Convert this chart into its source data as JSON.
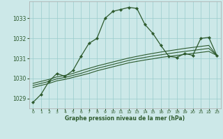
{
  "background_color": "#cce8e8",
  "grid_color": "#99cccc",
  "line_color": "#2d5a2d",
  "title": "Graphe pression niveau de la mer (hPa)",
  "xlim": [
    -0.5,
    23.5
  ],
  "ylim": [
    1028.5,
    1033.85
  ],
  "yticks": [
    1029,
    1030,
    1031,
    1032,
    1033
  ],
  "xticks": [
    0,
    1,
    2,
    3,
    4,
    5,
    6,
    7,
    8,
    9,
    10,
    11,
    12,
    13,
    14,
    15,
    16,
    17,
    18,
    19,
    20,
    21,
    22,
    23
  ],
  "series1_x": [
    0,
    1,
    2,
    3,
    4,
    5,
    6,
    7,
    8,
    9,
    10,
    11,
    12,
    13,
    14,
    15,
    16,
    17,
    18,
    19,
    20,
    21,
    22,
    23
  ],
  "series1_y": [
    1028.8,
    1029.2,
    1029.85,
    1030.25,
    1030.1,
    1030.4,
    1031.1,
    1031.75,
    1032.0,
    1033.0,
    1033.35,
    1033.45,
    1033.55,
    1033.5,
    1032.7,
    1032.25,
    1031.65,
    1031.1,
    1031.05,
    1031.25,
    1031.15,
    1032.0,
    1032.05,
    1031.15
  ],
  "series2_x": [
    0,
    1,
    2,
    3,
    4,
    5,
    6,
    7,
    8,
    9,
    10,
    11,
    12,
    13,
    14,
    15,
    16,
    17,
    18,
    19,
    20,
    21,
    22,
    23
  ],
  "series2_y": [
    1029.55,
    1029.65,
    1029.75,
    1029.88,
    1029.95,
    1030.05,
    1030.15,
    1030.25,
    1030.38,
    1030.48,
    1030.58,
    1030.68,
    1030.78,
    1030.85,
    1030.92,
    1030.98,
    1031.05,
    1031.1,
    1031.15,
    1031.2,
    1031.25,
    1031.3,
    1031.35,
    1031.15
  ],
  "series3_x": [
    0,
    1,
    2,
    3,
    4,
    5,
    6,
    7,
    8,
    9,
    10,
    11,
    12,
    13,
    14,
    15,
    16,
    17,
    18,
    19,
    20,
    21,
    22,
    23
  ],
  "series3_y": [
    1029.65,
    1029.75,
    1029.85,
    1029.98,
    1030.05,
    1030.15,
    1030.25,
    1030.38,
    1030.5,
    1030.6,
    1030.7,
    1030.8,
    1030.9,
    1030.98,
    1031.05,
    1031.12,
    1031.18,
    1031.24,
    1031.3,
    1031.35,
    1031.4,
    1031.45,
    1031.5,
    1031.15
  ],
  "series4_x": [
    0,
    1,
    2,
    3,
    4,
    5,
    6,
    7,
    8,
    9,
    10,
    11,
    12,
    13,
    14,
    15,
    16,
    17,
    18,
    19,
    20,
    21,
    22,
    23
  ],
  "series4_y": [
    1029.75,
    1029.85,
    1029.95,
    1030.08,
    1030.15,
    1030.25,
    1030.38,
    1030.5,
    1030.62,
    1030.72,
    1030.82,
    1030.92,
    1031.02,
    1031.1,
    1031.18,
    1031.25,
    1031.32,
    1031.38,
    1031.44,
    1031.5,
    1031.55,
    1031.6,
    1031.65,
    1031.15
  ]
}
